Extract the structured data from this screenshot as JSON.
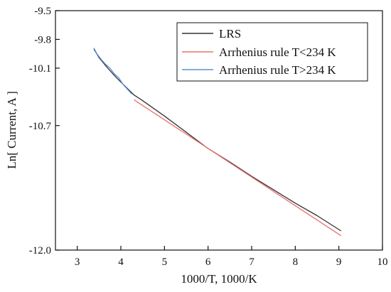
{
  "chart_data": {
    "type": "line",
    "title": "",
    "xlabel": "1000/T, 1000/K",
    "ylabel": "Ln[ Current, A ]",
    "xlim": [
      2.5,
      10
    ],
    "ylim": [
      -12.0,
      -9.5
    ],
    "xticks": [
      3,
      4,
      5,
      6,
      7,
      8,
      9,
      10
    ],
    "yticks": [
      -12.0,
      -10.7,
      -10.1,
      -9.8,
      -9.5
    ],
    "ytick_labels": [
      "-12.0",
      "-10.7",
      "-10.1",
      "-9.8",
      "-9.5"
    ],
    "grid": false,
    "legend_position": "top-right",
    "series": [
      {
        "name": "LRS",
        "color": "#333333",
        "x": [
          3.38,
          3.5,
          3.7,
          3.9,
          4.1,
          4.3,
          4.5,
          5.0,
          5.5,
          6.0,
          6.5,
          7.0,
          7.5,
          8.0,
          8.5,
          9.05
        ],
        "y": [
          -9.9,
          -9.99,
          -10.1,
          -10.2,
          -10.29,
          -10.38,
          -10.44,
          -10.6,
          -10.77,
          -10.94,
          -11.08,
          -11.23,
          -11.37,
          -11.51,
          -11.64,
          -11.8
        ]
      },
      {
        "name": "Arrhenius rule T<234 K",
        "color": "#e8706f",
        "x": [
          4.3,
          9.05
        ],
        "y": [
          -10.43,
          -11.85
        ]
      },
      {
        "name": "Arrhenius rule T>234 K",
        "color": "#5b8fd0",
        "x": [
          3.38,
          3.45,
          3.55,
          3.65,
          3.75,
          3.85,
          3.95,
          4.05,
          4.15,
          4.25
        ],
        "y": [
          -9.89,
          -9.95,
          -10.01,
          -10.06,
          -10.1,
          -10.16,
          -10.2,
          -10.27,
          -10.32,
          -10.37
        ]
      }
    ]
  }
}
